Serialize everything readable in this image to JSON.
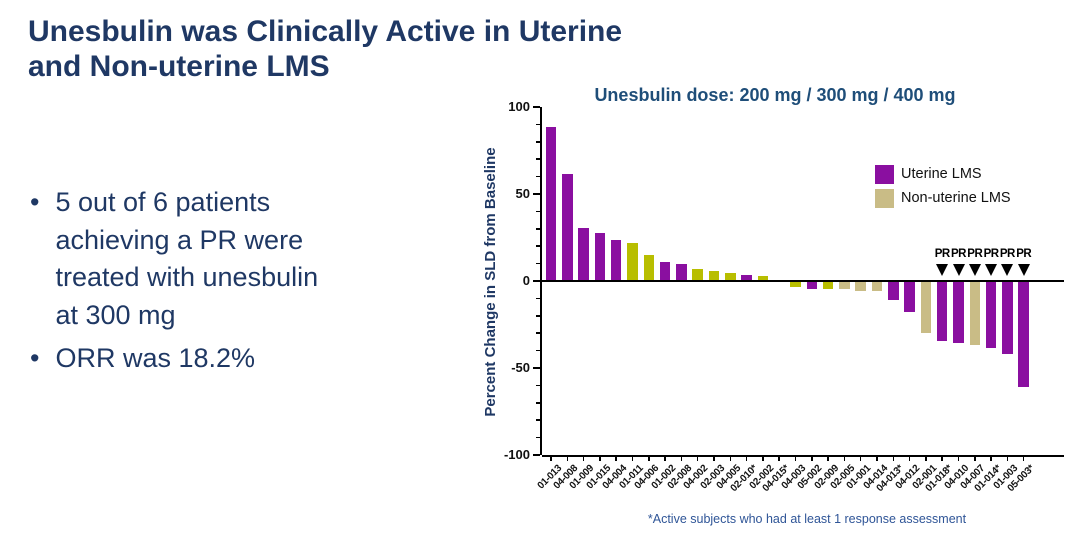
{
  "slide": {
    "title": "Unesbulin was Clinically Active in Uterine\nand Non-uterine LMS",
    "bullets": [
      "5 out of 6 patients\nachieving a PR were\ntreated with unesbulin\nat 300 mg",
      "ORR was 18.2%"
    ]
  },
  "chart_data": {
    "type": "bar",
    "title": "Unesbulin dose: 200 mg / 300 mg / 400 mg",
    "ylabel": "Percent Change in SLD from Baseline",
    "xlabel": "",
    "ylim": [
      -100,
      100
    ],
    "ytick_values": [
      100,
      50,
      0,
      -50,
      -100
    ],
    "ytick_labels": [
      "100",
      "50",
      "0",
      "-50",
      "-100"
    ],
    "minor_tick_step": 10,
    "grid": false,
    "legend_position": "upper right",
    "legend": [
      {
        "label": "Uterine LMS",
        "color": "#8A0FA0"
      },
      {
        "label": "Non-uterine LMS",
        "color": "#C9BC86"
      }
    ],
    "palette": {
      "uterine_purple": "#8A0FA0",
      "yellow_green": "#B8BE00",
      "nonuterine_tan": "#C9BC86"
    },
    "categories": [
      "01-013",
      "04-008",
      "01-009",
      "01-015",
      "04-004",
      "01-011",
      "04-006",
      "01-002",
      "02-008",
      "04-002",
      "02-003",
      "04-005",
      "02-010*",
      "02-002",
      "04-015*",
      "04-003",
      "05-002",
      "02-009",
      "02-005",
      "01-001",
      "04-014",
      "04-013*",
      "04-012",
      "02-001",
      "01-018*",
      "04-010",
      "04-007",
      "01-014*",
      "01-003",
      "05-003*"
    ],
    "values": [
      88,
      61,
      30,
      27,
      23,
      21,
      14,
      10,
      9,
      6,
      5,
      4,
      3,
      2,
      0,
      -3,
      -4,
      -4,
      -4,
      -5,
      -5,
      -10,
      -17,
      -29,
      -34,
      -35,
      -36,
      -38,
      -41,
      -60
    ],
    "bar_colors": [
      "uterine_purple",
      "uterine_purple",
      "uterine_purple",
      "uterine_purple",
      "uterine_purple",
      "yellow_green",
      "yellow_green",
      "uterine_purple",
      "uterine_purple",
      "yellow_green",
      "yellow_green",
      "yellow_green",
      "uterine_purple",
      "yellow_green",
      "none",
      "yellow_green",
      "uterine_purple",
      "yellow_green",
      "nonuterine_tan",
      "nonuterine_tan",
      "nonuterine_tan",
      "uterine_purple",
      "uterine_purple",
      "nonuterine_tan",
      "uterine_purple",
      "uterine_purple",
      "nonuterine_tan",
      "uterine_purple",
      "uterine_purple",
      "uterine_purple"
    ],
    "pr_indices": [
      24,
      25,
      26,
      27,
      28,
      29
    ],
    "pr_label": "PR",
    "footnote": "*Active subjects who had at least 1 response assessment"
  }
}
